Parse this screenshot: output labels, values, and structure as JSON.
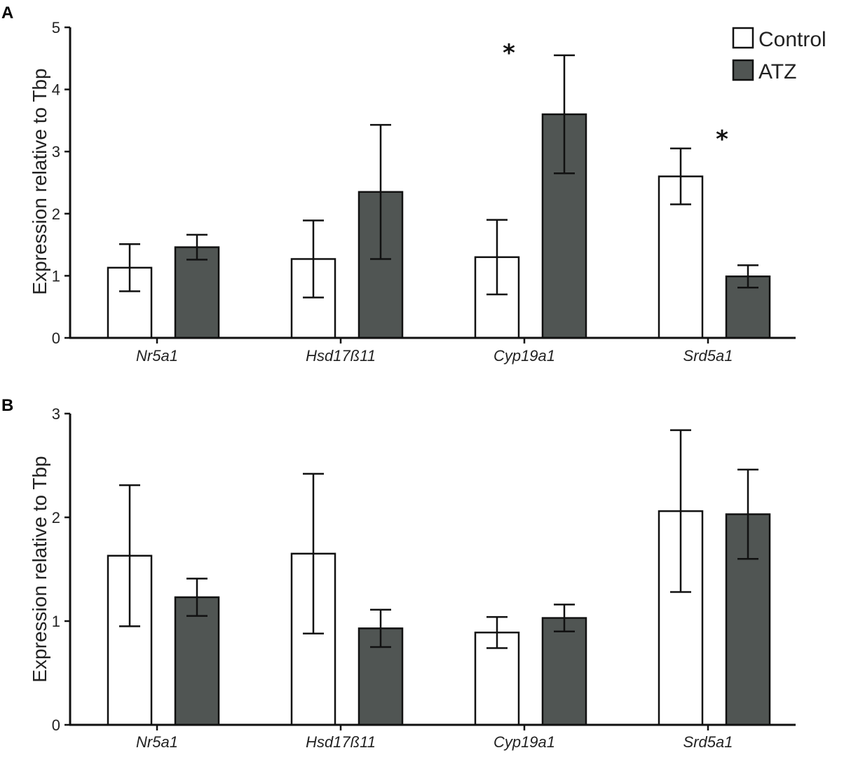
{
  "legend": {
    "control": "Control",
    "atz": "ATZ"
  },
  "colors": {
    "control_fill": "#ffffff",
    "atz_fill": "#505553",
    "stroke": "#111111"
  },
  "chart_data": [
    {
      "panel": "A",
      "type": "bar",
      "ylabel": "Expression relative to Tbp",
      "categories": [
        "Nr5a1",
        "Hsd17ß11",
        "Cyp19a1",
        "Srd5a1"
      ],
      "ylim": [
        0,
        5
      ],
      "yticks": [
        "0",
        "1",
        "2",
        "3",
        "4",
        "5"
      ],
      "series": [
        {
          "name": "Control",
          "values": [
            1.13,
            1.27,
            1.3,
            2.6
          ],
          "errors": [
            0.38,
            0.62,
            0.6,
            0.45
          ]
        },
        {
          "name": "ATZ",
          "values": [
            1.46,
            2.35,
            3.6,
            0.99
          ],
          "errors": [
            0.2,
            1.08,
            0.95,
            0.18
          ]
        }
      ],
      "annotations": [
        {
          "text": "*",
          "category": "Cyp19a1",
          "series": "ATZ"
        },
        {
          "text": "*",
          "category": "Srd5a1",
          "series": "ATZ"
        }
      ]
    },
    {
      "panel": "B",
      "type": "bar",
      "ylabel": "Expression relative to Tbp",
      "categories": [
        "Nr5a1",
        "Hsd17ß11",
        "Cyp19a1",
        "Srd5a1"
      ],
      "ylim": [
        0,
        3
      ],
      "yticks": [
        "0",
        "1",
        "2",
        "3"
      ],
      "series": [
        {
          "name": "Control",
          "values": [
            1.63,
            1.65,
            0.89,
            2.06
          ],
          "errors": [
            0.68,
            0.77,
            0.15,
            0.78
          ]
        },
        {
          "name": "ATZ",
          "values": [
            1.23,
            0.93,
            1.03,
            2.03
          ],
          "errors": [
            0.18,
            0.18,
            0.13,
            0.43
          ]
        }
      ],
      "annotations": []
    }
  ]
}
